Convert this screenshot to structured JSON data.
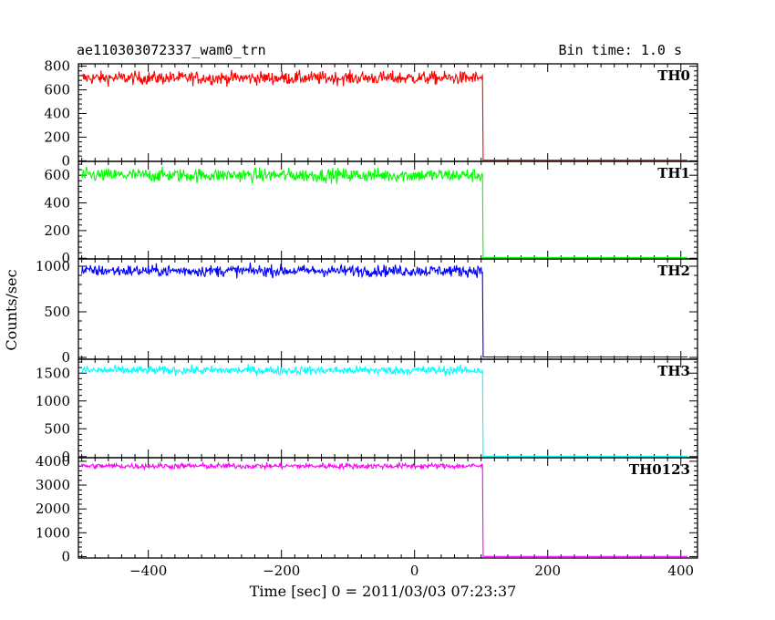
{
  "chart_data": {
    "type": "line",
    "title": "ae110303072337_wam0_trn",
    "bin_time": "Bin time: 1.0 s",
    "ylabel": "Counts/sec",
    "xlabel": "Time [sec] 0 = 2011/03/03 07:23:37",
    "xlim": [
      -505,
      425
    ],
    "x_ticks": [
      -400,
      -200,
      0,
      200,
      400
    ],
    "step_time": 103,
    "panels": [
      {
        "name": "TH0",
        "color": "#ff0000",
        "ylim": [
          -5,
          820
        ],
        "y_ticks": [
          0,
          200,
          400,
          600,
          800
        ],
        "level_before": 700,
        "noise": 28,
        "level_after": 5
      },
      {
        "name": "TH1",
        "color": "#00ff00",
        "ylim": [
          -5,
          700
        ],
        "y_ticks": [
          0,
          200,
          400,
          600
        ],
        "level_before": 600,
        "noise": 25,
        "level_after": 5
      },
      {
        "name": "TH2",
        "color": "#0000ff",
        "ylim": [
          -20,
          1080
        ],
        "y_ticks": [
          0,
          500,
          1000
        ],
        "level_before": 950,
        "noise": 32,
        "level_after": 5
      },
      {
        "name": "TH3",
        "color": "#00ffff",
        "ylim": [
          -20,
          1750
        ],
        "y_ticks": [
          0,
          500,
          1000,
          1500
        ],
        "level_before": 1550,
        "noise": 40,
        "level_after": 5
      },
      {
        "name": "TH0123",
        "color": "#ff00ff",
        "ylim": [
          -60,
          4150
        ],
        "y_ticks": [
          0,
          1000,
          2000,
          3000,
          4000
        ],
        "level_before": 3800,
        "noise": 60,
        "level_after": 5
      }
    ]
  }
}
